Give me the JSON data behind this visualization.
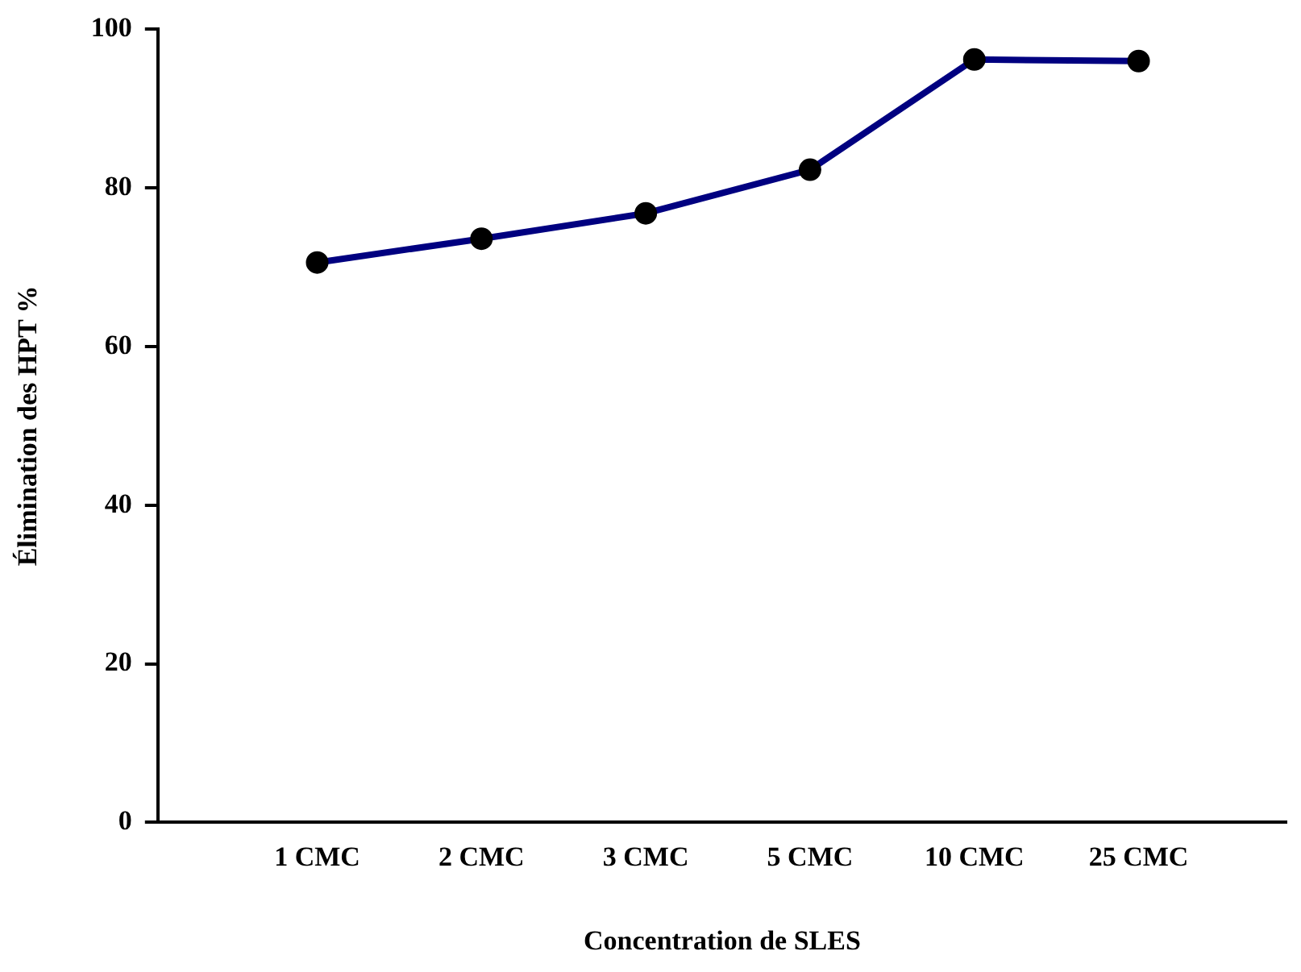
{
  "chart_data": {
    "type": "line",
    "xlabel": "Concentration de SLES",
    "ylabel": "Élimination des HPT %",
    "categories": [
      "1 CMC",
      "2 CMC",
      "3 CMC",
      "5 CMC",
      "10 CMC",
      "25 CMC"
    ],
    "series": [
      {
        "color": "#000080",
        "values": [
          70.6,
          73.6,
          76.8,
          82.3,
          96.2,
          96.0
        ]
      }
    ],
    "ylim": [
      0,
      100
    ],
    "yticks": [
      0,
      20,
      40,
      60,
      80,
      100
    ],
    "grid": false,
    "legend": false,
    "marker": "circle",
    "line_style": "solid"
  }
}
